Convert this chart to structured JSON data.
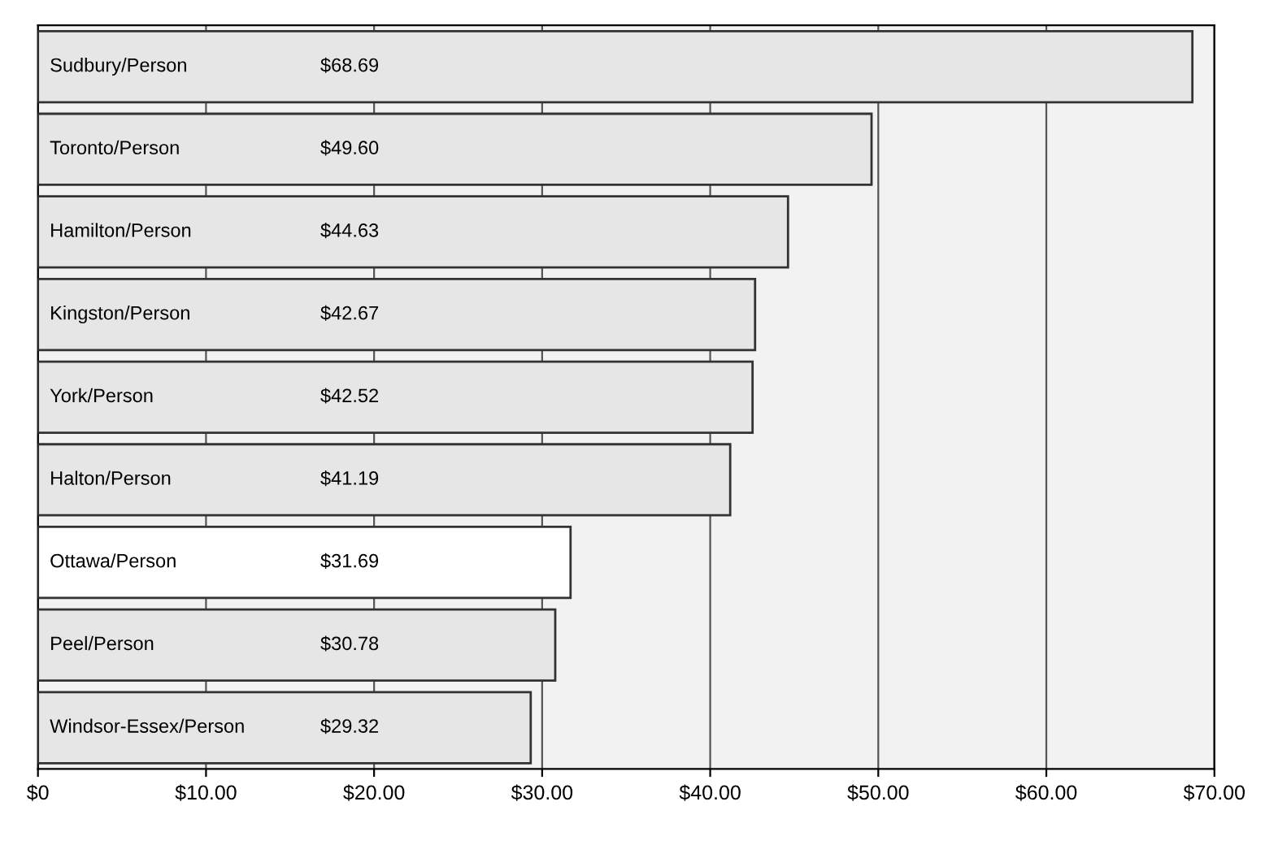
{
  "chart_data": {
    "type": "bar",
    "orientation": "horizontal",
    "categories": [
      "Sudbury/Person",
      "Toronto/Person",
      "Hamilton/Person",
      "Kingston/Person",
      "York/Person",
      "Halton/Person",
      "Ottawa/Person",
      "Peel/Person",
      "Windsor-Essex/Person"
    ],
    "values": [
      68.69,
      49.6,
      44.63,
      42.67,
      42.52,
      41.19,
      31.69,
      30.78,
      29.32
    ],
    "value_labels": [
      "$68.69",
      "$49.60",
      "$44.63",
      "$42.67",
      "$42.52",
      "$41.19",
      "$31.69",
      "$30.78",
      "$29.32"
    ],
    "colors": [
      "#e6e6e6",
      "#e6e6e6",
      "#e6e6e6",
      "#e6e6e6",
      "#e6e6e6",
      "#e6e6e6",
      "#ffffff",
      "#e6e6e6",
      "#e6e6e6"
    ],
    "xlim": [
      0,
      70
    ],
    "xticks": [
      {
        "value": 0,
        "label": "$0"
      },
      {
        "value": 10,
        "label": "$10.00"
      },
      {
        "value": 20,
        "label": "$20.00"
      },
      {
        "value": 30,
        "label": "$30.00"
      },
      {
        "value": 40,
        "label": "$40.00"
      },
      {
        "value": 50,
        "label": "$50.00"
      },
      {
        "value": 60,
        "label": "$60.00"
      },
      {
        "value": 70,
        "label": "$70.00"
      }
    ],
    "grid": "x",
    "legend": false
  }
}
